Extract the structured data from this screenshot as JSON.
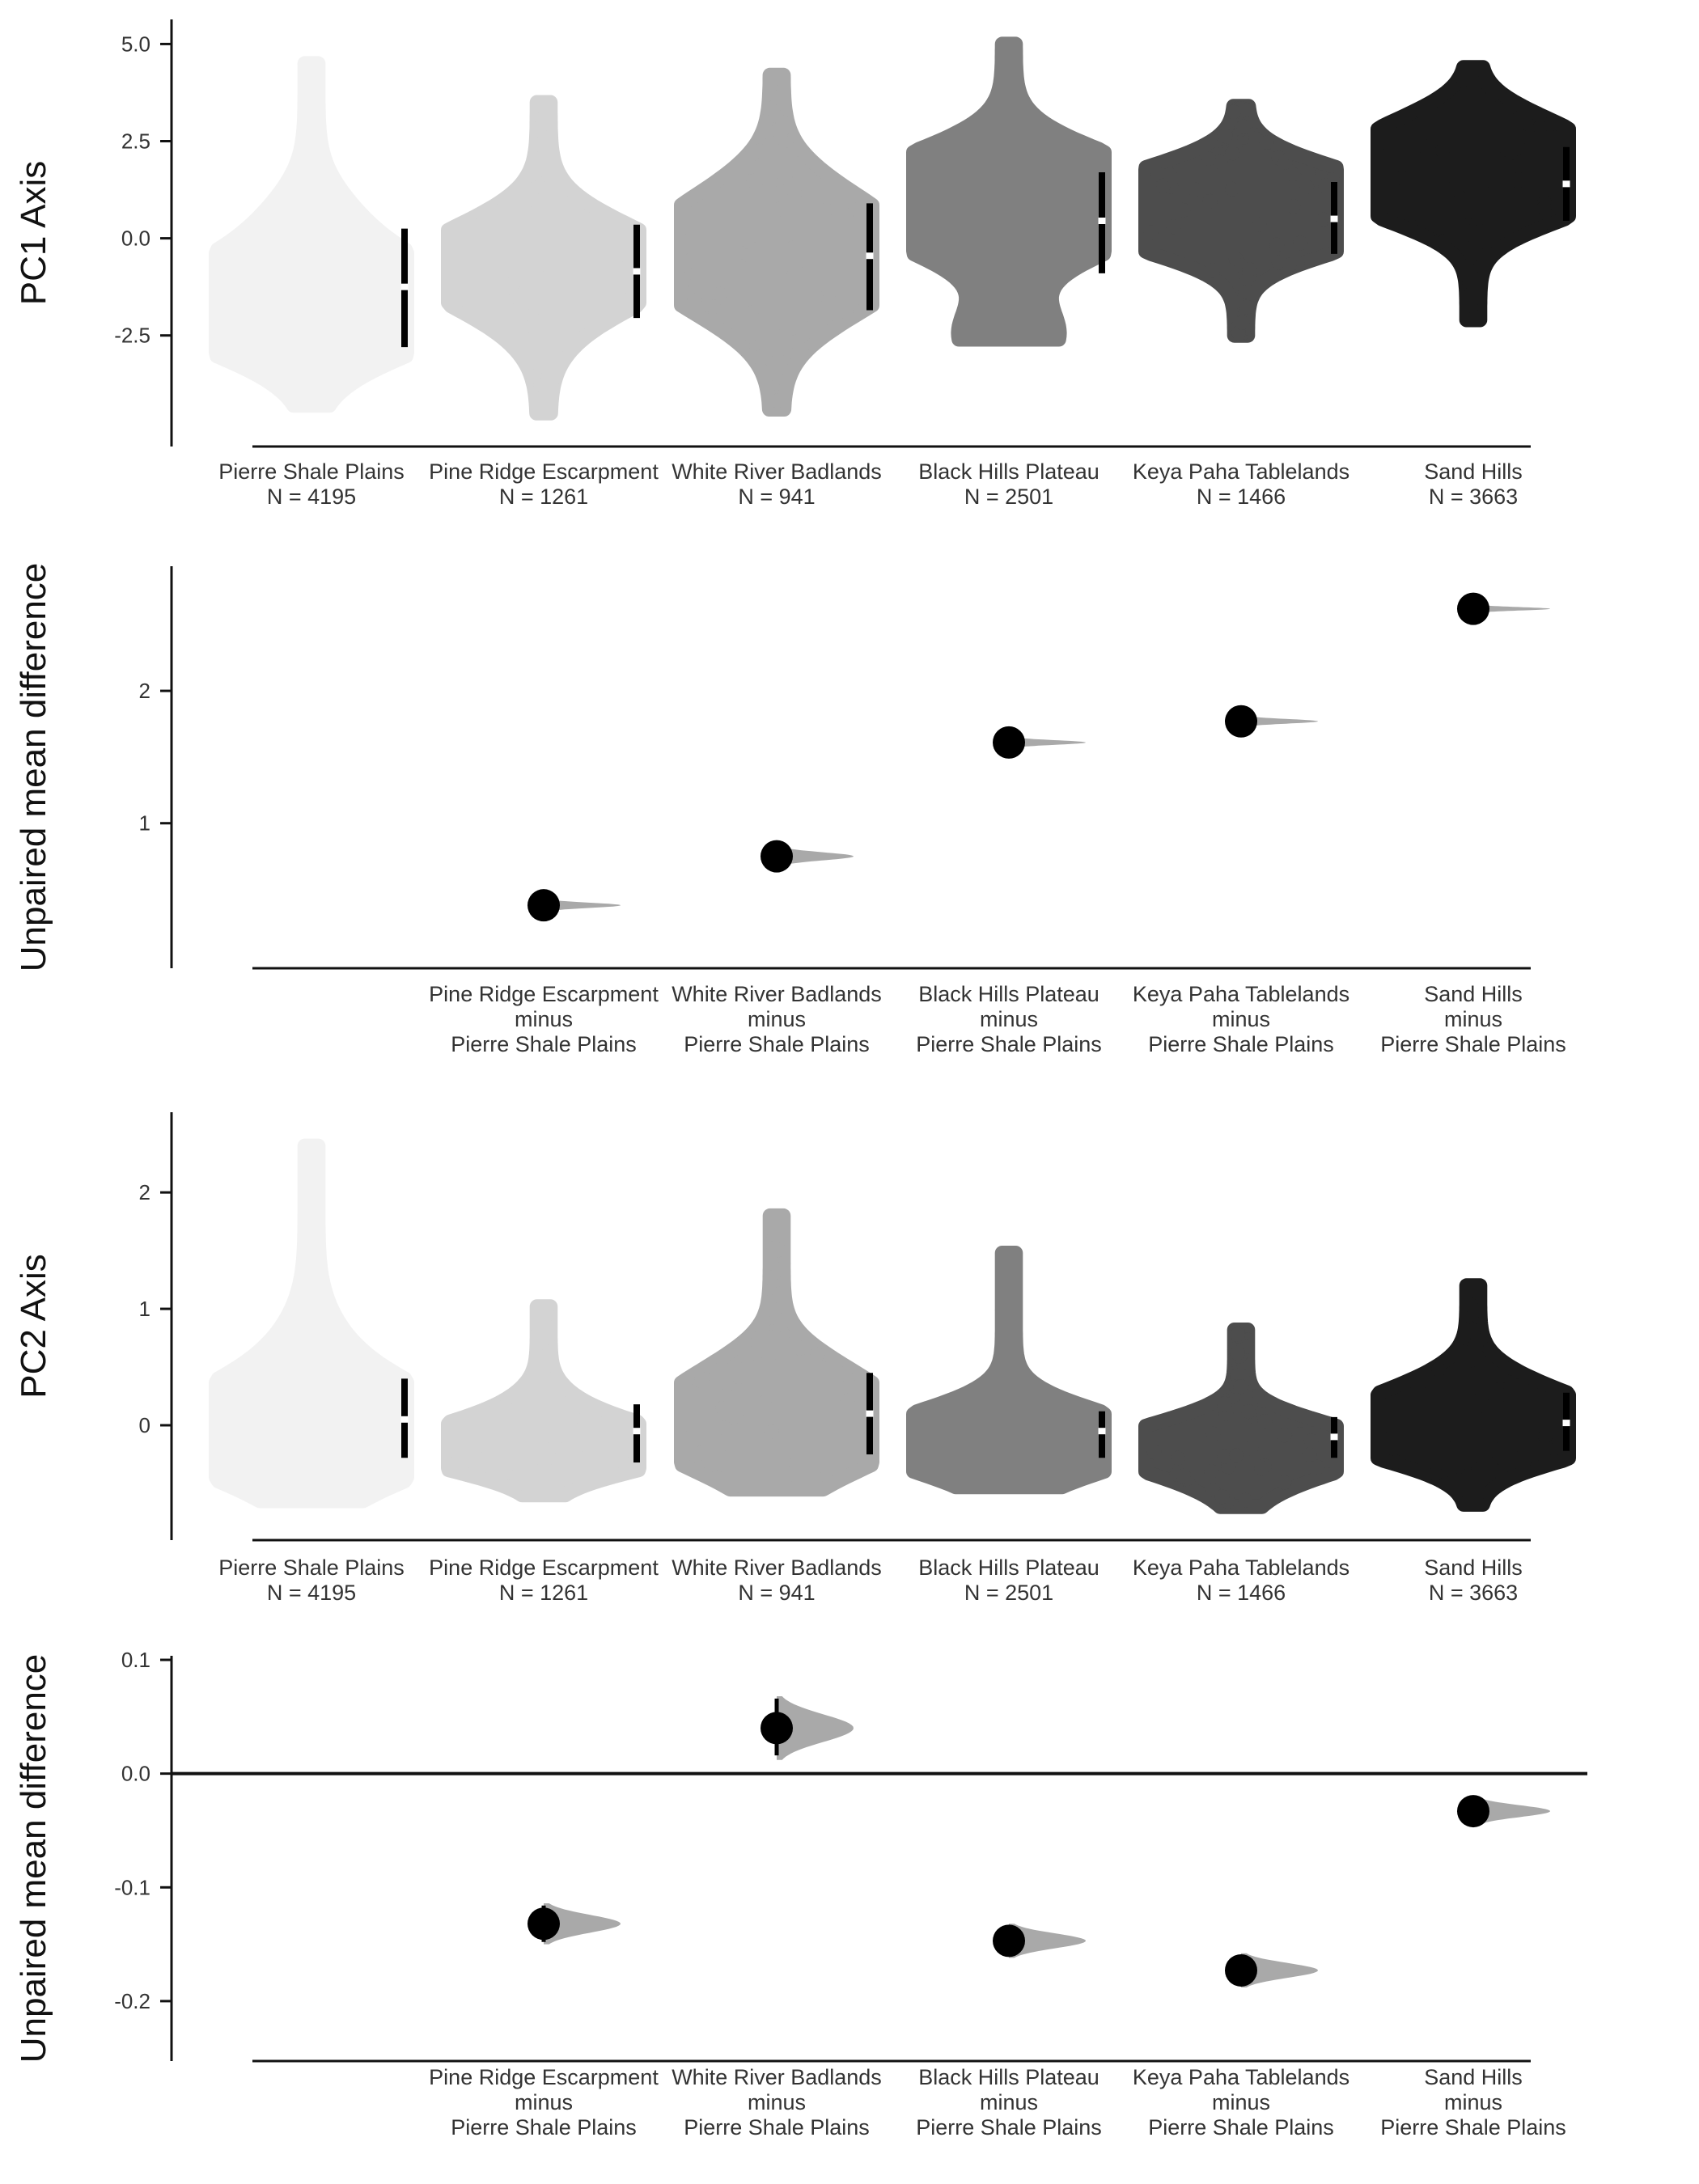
{
  "chart_data": [
    {
      "type": "swarm",
      "ylabel": "PC1 Axis",
      "yticks": [
        "5.0",
        "2.5",
        "0.0",
        "-2.5"
      ],
      "ytick_values": [
        5.0,
        2.5,
        0.0,
        -2.5
      ],
      "ylim": [
        -4.9,
        5.3
      ],
      "grid": false,
      "groups": [
        {
          "name": "Pierre Shale Plains",
          "n_label": "N = 4195",
          "color": "#f2f2f2",
          "min": -4.3,
          "max": 4.5,
          "mean": -1.25,
          "sd_low": -2.8,
          "sd_high": 0.25,
          "modes": [
            [
              -1.4,
              1.0
            ],
            [
              -2.3,
              0.9
            ],
            [
              0.3,
              0.35
            ]
          ]
        },
        {
          "name": "Pine Ridge Escarpment",
          "n_label": "N = 1261",
          "color": "#d3d3d3",
          "min": -4.5,
          "max": 3.5,
          "mean": -0.85,
          "sd_low": -2.05,
          "sd_high": 0.35,
          "modes": [
            [
              -0.85,
              1.0
            ],
            [
              0.0,
              0.45
            ],
            [
              -2.0,
              0.25
            ]
          ]
        },
        {
          "name": "White River Badlands",
          "n_label": "N = 941",
          "color": "#a9a9a9",
          "min": -4.4,
          "max": 4.2,
          "mean": -0.45,
          "sd_low": -1.85,
          "sd_high": 0.9,
          "modes": [
            [
              -0.4,
              1.0
            ],
            [
              -1.6,
              0.55
            ],
            [
              0.9,
              0.5
            ]
          ]
        },
        {
          "name": "Black Hills Plateau",
          "n_label": "N = 2501",
          "color": "#808080",
          "min": -2.6,
          "max": 5.0,
          "mean": 0.45,
          "sd_low": -0.9,
          "sd_high": 1.7,
          "modes": [
            [
              0.8,
              1.0
            ],
            [
              1.7,
              0.85
            ],
            [
              -0.1,
              0.55
            ],
            [
              -2.5,
              0.45
            ]
          ]
        },
        {
          "name": "Keya Paha Tablelands",
          "n_label": "N = 1466",
          "color": "#4d4d4d",
          "min": -2.5,
          "max": 3.4,
          "mean": 0.5,
          "sd_low": -0.4,
          "sd_high": 1.45,
          "modes": [
            [
              0.1,
              1.0
            ],
            [
              0.9,
              0.9
            ],
            [
              1.5,
              0.65
            ]
          ]
        },
        {
          "name": "Sand Hills",
          "n_label": "N = 3663",
          "color": "#1c1c1c",
          "min": -2.1,
          "max": 4.4,
          "mean": 1.4,
          "sd_low": 0.45,
          "sd_high": 2.35,
          "modes": [
            [
              1.0,
              1.0
            ],
            [
              2.6,
              0.75
            ],
            [
              1.8,
              0.5
            ]
          ]
        }
      ]
    },
    {
      "type": "contrast",
      "ylabel": "Unpaired mean difference",
      "yticks": [
        "2",
        "1"
      ],
      "ytick_values": [
        2,
        1
      ],
      "ylim": [
        0.1,
        2.85
      ],
      "zero_line": false,
      "grid": false,
      "contrasts": [
        {
          "label": [
            "Pine Ridge Escarpment",
            "minus",
            "Pierre Shale Plains"
          ],
          "value": 0.38,
          "ci": [
            0.33,
            0.43
          ],
          "spread": 0.045
        },
        {
          "label": [
            "White River Badlands",
            "minus",
            "Pierre Shale Plains"
          ],
          "value": 0.75,
          "ci": [
            0.68,
            0.83
          ],
          "spread": 0.07
        },
        {
          "label": [
            "Black Hills Plateau",
            "minus",
            "Pierre Shale Plains"
          ],
          "value": 1.61,
          "ci": [
            1.57,
            1.65
          ],
          "spread": 0.04
        },
        {
          "label": [
            "Keya Paha Tablelands",
            "minus",
            "Pierre Shale Plains"
          ],
          "value": 1.77,
          "ci": [
            1.73,
            1.81
          ],
          "spread": 0.04
        },
        {
          "label": [
            "Sand Hills",
            "minus",
            "Pierre Shale Plains"
          ],
          "value": 2.62,
          "ci": [
            2.59,
            2.65
          ],
          "spread": 0.03
        }
      ]
    },
    {
      "type": "swarm",
      "ylabel": "PC2 Axis",
      "yticks": [
        "2",
        "1",
        "0"
      ],
      "ytick_values": [
        2,
        1,
        0
      ],
      "ylim": [
        -0.82,
        2.55
      ],
      "grid": false,
      "groups": [
        {
          "name": "Pierre Shale Plains",
          "n_label": "N = 4195",
          "color": "#f2f2f2",
          "min": -0.65,
          "max": 2.4,
          "mean": 0.05,
          "sd_low": -0.28,
          "sd_high": 0.4,
          "modes": [
            [
              -0.18,
              1.0
            ],
            [
              0.0,
              0.6
            ],
            [
              0.3,
              0.3
            ],
            [
              0.7,
              0.15
            ]
          ]
        },
        {
          "name": "Pine Ridge Escarpment",
          "n_label": "N = 1261",
          "color": "#d3d3d3",
          "min": -0.6,
          "max": 1.02,
          "mean": -0.05,
          "sd_low": -0.32,
          "sd_high": 0.18,
          "modes": [
            [
              -0.25,
              1.0
            ],
            [
              -0.1,
              0.6
            ],
            [
              0.15,
              0.2
            ]
          ]
        },
        {
          "name": "White River Badlands",
          "n_label": "N = 941",
          "color": "#a9a9a9",
          "min": -0.55,
          "max": 1.8,
          "mean": 0.1,
          "sd_low": -0.25,
          "sd_high": 0.45,
          "modes": [
            [
              0.0,
              1.0
            ],
            [
              0.4,
              0.55
            ],
            [
              -0.3,
              0.5
            ]
          ]
        },
        {
          "name": "Black Hills Plateau",
          "n_label": "N = 2501",
          "color": "#808080",
          "min": -0.53,
          "max": 1.48,
          "mean": -0.05,
          "sd_low": -0.28,
          "sd_high": 0.12,
          "modes": [
            [
              -0.18,
              1.0
            ],
            [
              0.0,
              0.55
            ],
            [
              -0.4,
              0.2
            ]
          ]
        },
        {
          "name": "Keya Paha Tablelands",
          "n_label": "N = 1466",
          "color": "#4d4d4d",
          "min": -0.7,
          "max": 0.82,
          "mean": -0.1,
          "sd_low": -0.28,
          "sd_high": 0.07,
          "modes": [
            [
              -0.25,
              1.0
            ],
            [
              -0.05,
              0.6
            ],
            [
              -0.5,
              0.25
            ]
          ]
        },
        {
          "name": "Sand Hills",
          "n_label": "N = 3663",
          "color": "#1c1c1c",
          "min": -0.68,
          "max": 1.2,
          "mean": 0.02,
          "sd_low": -0.22,
          "sd_high": 0.28,
          "modes": [
            [
              -0.13,
              1.0
            ],
            [
              0.05,
              0.7
            ],
            [
              0.3,
              0.4
            ]
          ]
        }
      ]
    },
    {
      "type": "contrast",
      "ylabel": "Unpaired mean difference",
      "yticks": [
        "0.1",
        "0.0",
        "-0.1",
        "-0.2"
      ],
      "ytick_values": [
        0.1,
        0.0,
        -0.1,
        -0.2
      ],
      "ylim": [
        -0.215,
        0.105
      ],
      "zero_line": true,
      "grid": false,
      "contrasts": [
        {
          "label": [
            "Pine Ridge Escarpment",
            "minus",
            "Pierre Shale Plains"
          ],
          "value": -0.132,
          "ci": [
            -0.148,
            -0.116
          ],
          "spread": 0.018
        },
        {
          "label": [
            "White River Badlands",
            "minus",
            "Pierre Shale Plains"
          ],
          "value": 0.04,
          "ci": [
            0.016,
            0.066
          ],
          "spread": 0.028
        },
        {
          "label": [
            "Black Hills Plateau",
            "minus",
            "Pierre Shale Plains"
          ],
          "value": -0.147,
          "ci": [
            -0.16,
            -0.134
          ],
          "spread": 0.015
        },
        {
          "label": [
            "Keya Paha Tablelands",
            "minus",
            "Pierre Shale Plains"
          ],
          "value": -0.173,
          "ci": [
            -0.186,
            -0.16
          ],
          "spread": 0.015
        },
        {
          "label": [
            "Sand Hills",
            "minus",
            "Pierre Shale Plains"
          ],
          "value": -0.033,
          "ci": [
            -0.044,
            -0.022
          ],
          "spread": 0.012
        }
      ]
    }
  ]
}
